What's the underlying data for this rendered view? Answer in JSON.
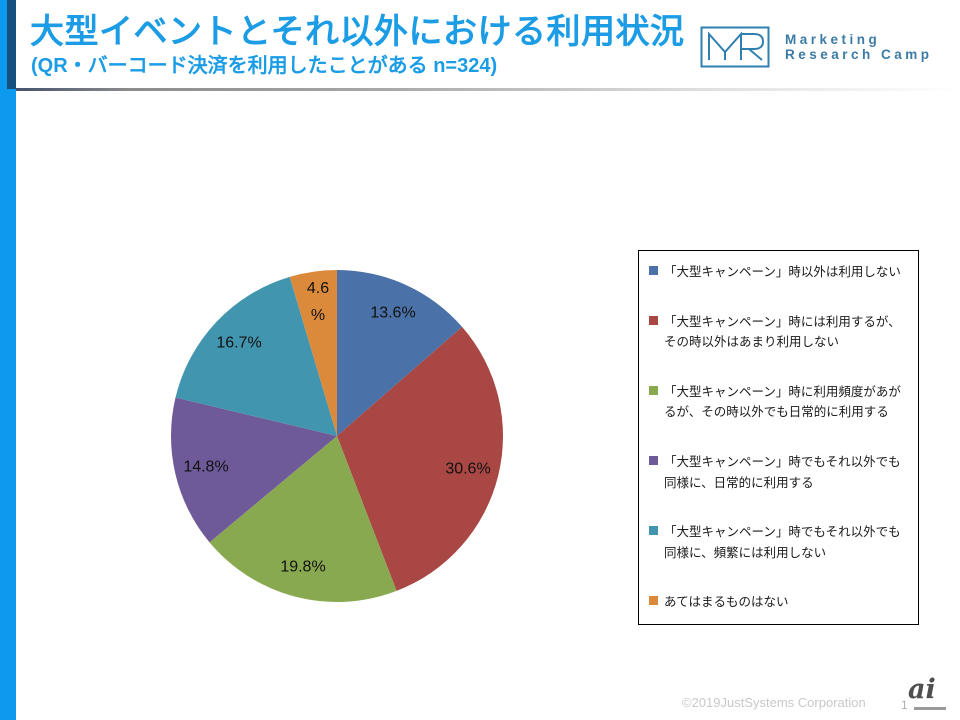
{
  "header": {
    "title": "大型イベントとそれ以外における利用状況",
    "subtitle": "(QR・バーコード決済を利用したことがある n=324)",
    "accent_color": "#1B9CE5"
  },
  "logo": {
    "monogram": "MR",
    "line1": "Marketing",
    "line2": "Research Camp",
    "color": "#3B7BA6"
  },
  "chart_data": {
    "type": "pie",
    "title": "",
    "start_angle": "12-oclock-clockwise",
    "legend_position": "right",
    "categories": [
      "「大型キャンペーン」時以外は利用しない",
      "「大型キャンペーン」時には利用するが、その時以外はあまり利用しない",
      "「大型キャンペーン」時に利用頻度があがるが、その時以外でも日常的に利用する",
      "「大型キャンペーン」時でもそれ以外でも同様に、日常的に利用する",
      "「大型キャンペーン」時でもそれ以外でも同様に、頻繁には利用しない",
      "あてはまるものはない"
    ],
    "values": [
      13.6,
      30.6,
      19.8,
      14.8,
      16.7,
      4.6
    ],
    "labels": [
      "13.6%",
      "30.6%",
      "19.8%",
      "14.8%",
      "16.7%",
      "4.6\n%"
    ],
    "colors": [
      "#4A72A8",
      "#A84743",
      "#89A950",
      "#6E5A99",
      "#4295AE",
      "#DB8A3C"
    ]
  },
  "footer": {
    "copyright": "©2019JustSystems Corporation",
    "page_number": "1",
    "watermark": "ai"
  }
}
